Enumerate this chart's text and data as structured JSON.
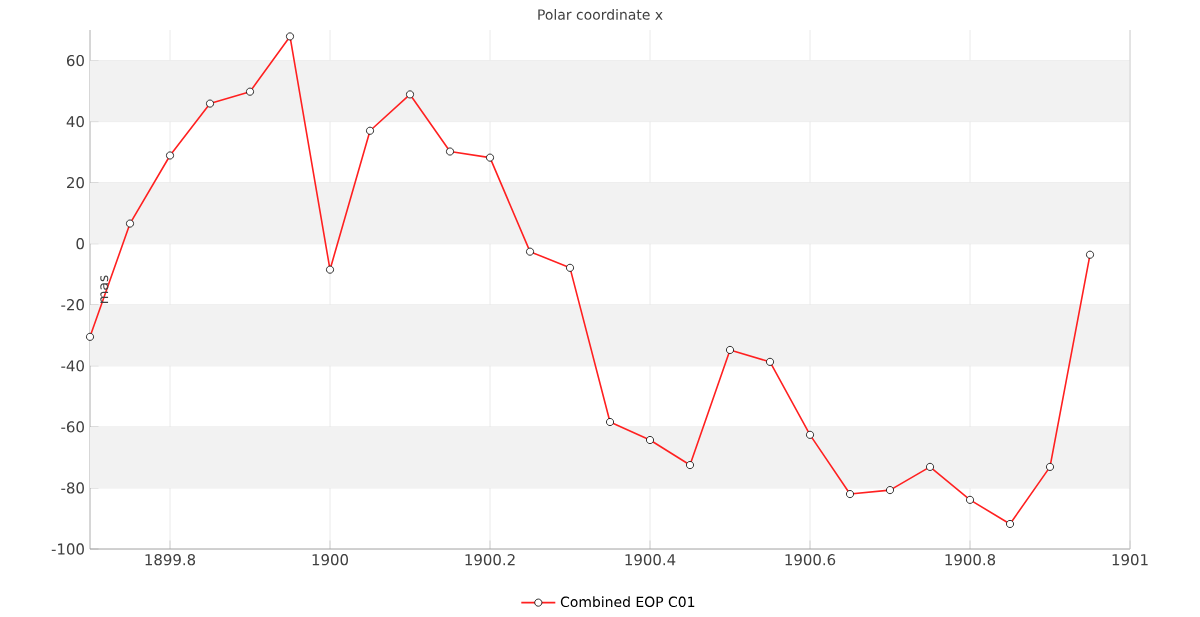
{
  "chart_data": {
    "type": "line",
    "title": "Polar coordinate x",
    "ylabel": "mas",
    "x": [
      1899.7,
      1899.75,
      1899.8,
      1899.85,
      1899.9,
      1899.95,
      1900.0,
      1900.05,
      1900.1,
      1900.15,
      1900.2,
      1900.25,
      1900.3,
      1900.35,
      1900.4,
      1900.45,
      1900.5,
      1900.55,
      1900.6,
      1900.65,
      1900.7,
      1900.75,
      1900.8,
      1900.85,
      1900.9,
      1900.95
    ],
    "series": [
      {
        "name": "Combined EOP C01",
        "color": "#ff2020",
        "values": [
          -30.5,
          6.6,
          28.9,
          45.9,
          49.8,
          67.9,
          -8.5,
          37.0,
          48.9,
          30.2,
          28.2,
          -2.6,
          -7.9,
          -58.4,
          -64.3,
          -72.5,
          -34.8,
          -38.7,
          -62.6,
          -82.0,
          -80.7,
          -73.1,
          -83.9,
          -91.8,
          -73.1,
          -3.6
        ]
      }
    ],
    "xlim": [
      1899.7,
      1901
    ],
    "xticks": [
      1899.8,
      1900,
      1900.2,
      1900.4,
      1900.6,
      1900.8,
      1901
    ],
    "ylim": [
      -100,
      70
    ],
    "yticks": [
      -100,
      -80,
      -60,
      -40,
      -20,
      0,
      20,
      40,
      60
    ],
    "grid": true,
    "legend": "bottom",
    "marker": "circle",
    "line_style": "solid"
  }
}
